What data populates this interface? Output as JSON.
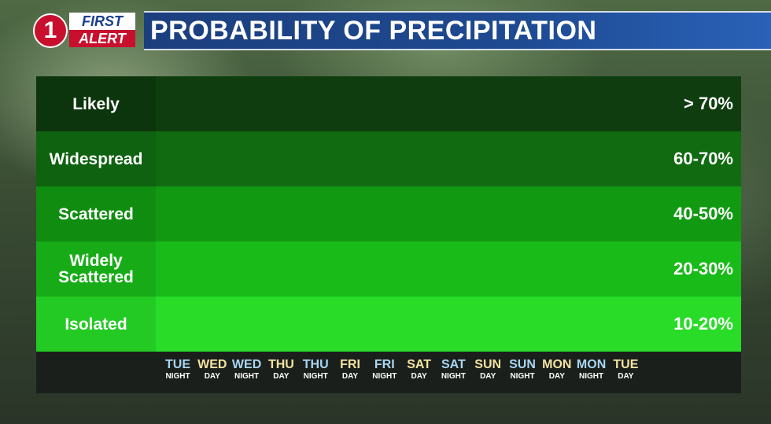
{
  "header": {
    "logo_number": "1",
    "logo_first": "FIRST",
    "logo_alert": "ALERT",
    "title": "PROBABILITY OF PRECIPITATION"
  },
  "colors": {
    "band_likely": "#0f3d0f",
    "band_widespread": "#116b11",
    "band_scattered": "#129912",
    "band_widely_scattered": "#19bb19",
    "band_isolated": "#28dc28",
    "night_text": "#a9d6f2",
    "day_text": "#f3e3a2",
    "title_bar": "#1e4a92"
  },
  "chart_data": {
    "type": "table",
    "title": "PROBABILITY OF PRECIPITATION",
    "rows": [
      {
        "category": "Likely",
        "range": "> 70%"
      },
      {
        "category": "Widespread",
        "range": "60-70%"
      },
      {
        "category": "Scattered",
        "range": "40-50%"
      },
      {
        "category": "Widely Scattered",
        "range": "20-30%"
      },
      {
        "category": "Isolated",
        "range": "10-20%"
      }
    ],
    "periods": [
      {
        "day": "TUE",
        "period": "NIGHT"
      },
      {
        "day": "WED",
        "period": "DAY"
      },
      {
        "day": "WED",
        "period": "NIGHT"
      },
      {
        "day": "THU",
        "period": "DAY"
      },
      {
        "day": "THU",
        "period": "NIGHT"
      },
      {
        "day": "FRI",
        "period": "DAY"
      },
      {
        "day": "FRI",
        "period": "NIGHT"
      },
      {
        "day": "SAT",
        "period": "DAY"
      },
      {
        "day": "SAT",
        "period": "NIGHT"
      },
      {
        "day": "SUN",
        "period": "DAY"
      },
      {
        "day": "SUN",
        "period": "NIGHT"
      },
      {
        "day": "MON",
        "period": "DAY"
      },
      {
        "day": "MON",
        "period": "NIGHT"
      },
      {
        "day": "TUE",
        "period": "DAY"
      }
    ]
  }
}
